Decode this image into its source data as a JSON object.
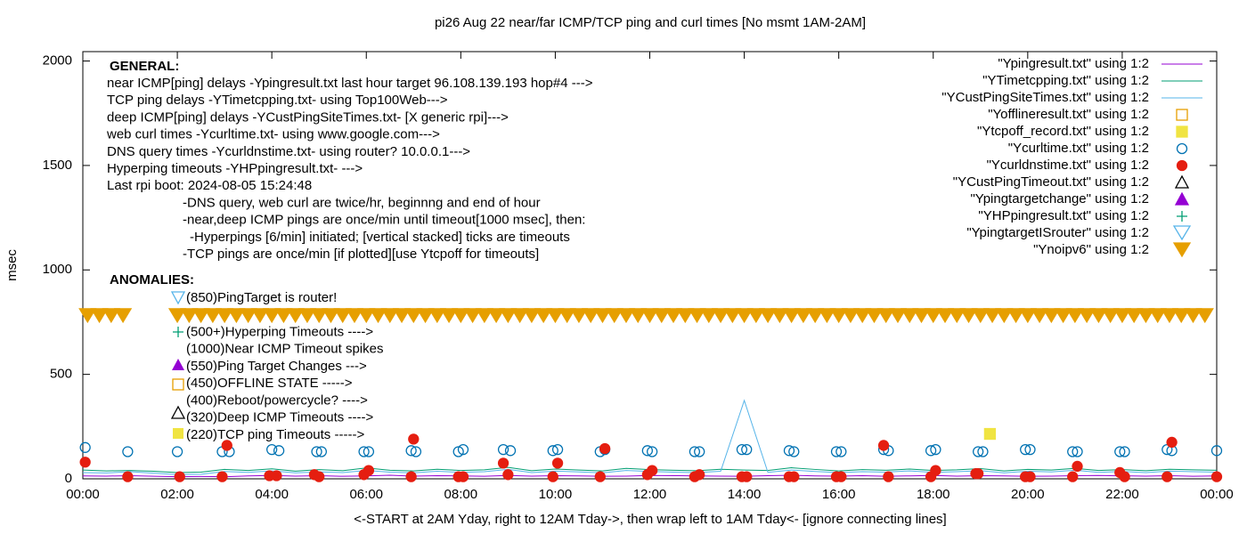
{
  "chart_data": {
    "type": "line",
    "title": "pi26 Aug 22  near/far ICMP/TCP ping and curl times [No msmt 1AM-2AM]",
    "x_label": "<-START at 2AM Yday, right to 12AM Tday->, then wrap left to 1AM Tday<- [ignore connecting lines]",
    "y_label": "msec",
    "xlim": [
      0,
      24
    ],
    "ylim": [
      0,
      2045
    ],
    "xticks": [
      {
        "value": 0,
        "label": "00:00"
      },
      {
        "value": 2,
        "label": "02:00"
      },
      {
        "value": 4,
        "label": "04:00"
      },
      {
        "value": 6,
        "label": "06:00"
      },
      {
        "value": 8,
        "label": "08:00"
      },
      {
        "value": 10,
        "label": "10:00"
      },
      {
        "value": 12,
        "label": "12:00"
      },
      {
        "value": 14,
        "label": "14:00"
      },
      {
        "value": 16,
        "label": "16:00"
      },
      {
        "value": 18,
        "label": "18:00"
      },
      {
        "value": 20,
        "label": "20:00"
      },
      {
        "value": 22,
        "label": "22:00"
      },
      {
        "value": 24,
        "label": "00:00"
      }
    ],
    "yticks": [
      0,
      500,
      1000,
      1500,
      2000
    ],
    "legend": "top-right",
    "general_title": "GENERAL:",
    "general": [
      "near ICMP[ping] delays -Ypingresult.txt last hour target 96.108.139.193 hop#4 --->",
      "TCP ping delays -YTimetcpping.txt- using Top100Web--->",
      "deep ICMP[ping] delays -YCustPingSiteTimes.txt- [X generic rpi]--->",
      "web curl times -Ycurltime.txt- using www.google.com--->",
      "DNS query times -Ycurldnstime.txt- using router? 10.0.0.1--->",
      "Hyperping timeouts -YHPpingresult.txt- --->",
      "Last rpi boot: 2024-08-05 15:24:48",
      "-DNS query, web curl are twice/hr, beginnng and end of hour",
      "-near,deep ICMP pings are once/min until timeout[1000 msec], then:",
      "-Hyperpings [6/min] initiated; [vertical stacked] ticks are timeouts",
      "-TCP pings are once/min [if plotted][use Ytcpoff for timeouts]"
    ],
    "anomalies_title": "ANOMALIES:",
    "anomalies": [
      "(850)PingTarget is router!",
      "(500+)Hyperping Timeouts ---->",
      "(1000)Near ICMP Timeout spikes",
      "(550)Ping Target Changes --->",
      "(450)OFFLINE STATE ----->",
      "(400)Reboot/powercycle? ---->",
      "(320)Deep ICMP Timeouts ---->",
      "(220)TCP ping Timeouts ----->"
    ],
    "x": [
      0,
      0.5,
      1,
      1.5,
      2,
      2.5,
      3,
      3.5,
      4,
      4.5,
      5,
      5.5,
      6,
      6.5,
      7,
      7.5,
      8,
      8.5,
      9,
      9.5,
      10,
      10.5,
      11,
      11.5,
      12,
      12.5,
      13,
      13.5,
      14,
      14.5,
      15,
      15.5,
      16,
      16.5,
      17,
      17.5,
      18,
      18.5,
      19,
      19.5,
      20,
      20.5,
      21,
      21.5,
      22,
      22.5,
      23,
      23.5,
      24
    ],
    "series": [
      {
        "name": "\"Ypingresult.txt\" using 1:2",
        "color": "#9400d3",
        "style": "line",
        "values": [
          14,
          13,
          15,
          12,
          10,
          11,
          10,
          14,
          16,
          13,
          15,
          12,
          14,
          17,
          13,
          15,
          14,
          12,
          16,
          13,
          15,
          14,
          12,
          13,
          16,
          15,
          14,
          13,
          12,
          15,
          17,
          14,
          13,
          15,
          12,
          14,
          16,
          13,
          15,
          14,
          12,
          13,
          15,
          16,
          14,
          13,
          15,
          12,
          14
        ]
      },
      {
        "name": "\"YTimetcpping.txt\" using 1:2",
        "color": "#009e73",
        "style": "line",
        "values": [
          42,
          38,
          40,
          36,
          30,
          32,
          45,
          40,
          48,
          37,
          44,
          39,
          52,
          41,
          38,
          46,
          40,
          43,
          55,
          39,
          47,
          42,
          38,
          50,
          44,
          41,
          39,
          46,
          42,
          40,
          53,
          45,
          38,
          44,
          41,
          47,
          40,
          43,
          49,
          38,
          45,
          42,
          50,
          40,
          44,
          39,
          46,
          43,
          41
        ]
      },
      {
        "name": "\"YCustPingSiteTimes.txt\" using 1:2",
        "color": "#56b4e9",
        "style": "line",
        "values": [
          30,
          28,
          34,
          27,
          20,
          22,
          35,
          31,
          38,
          29,
          33,
          30,
          40,
          32,
          29,
          36,
          31,
          34,
          45,
          30,
          37,
          33,
          29,
          40,
          35,
          32,
          30,
          36,
          375,
          31,
          42,
          35,
          30,
          34,
          32,
          38,
          31,
          34,
          39,
          29,
          36,
          33,
          41,
          31,
          35,
          30,
          37,
          34,
          32
        ]
      },
      {
        "name": "\"Yofflineresult.txt\" using 1:2",
        "color": "#e69f00",
        "style": "square",
        "filled": false,
        "x": [],
        "values": []
      },
      {
        "name": "\"Ytcpoff_record.txt\" using 1:2",
        "color": "#f0e442",
        "style": "square",
        "filled": true,
        "x": [
          19.2
        ],
        "values": [
          215
        ]
      },
      {
        "name": "\"Ycurltime.txt\" using 1:2",
        "color": "#0072b2",
        "style": "circle",
        "filled": false,
        "x": [
          0.05,
          0.95,
          2.0,
          2.95,
          3.1,
          4.0,
          4.15,
          4.95,
          5.05,
          5.95,
          6.05,
          6.95,
          7.05,
          7.95,
          8.05,
          8.9,
          9.05,
          9.95,
          10.05,
          10.95,
          11.05,
          11.95,
          12.05,
          12.95,
          13.05,
          13.95,
          14.05,
          14.95,
          15.05,
          15.95,
          16.05,
          16.95,
          17.05,
          17.95,
          18.05,
          18.95,
          19.05,
          19.95,
          20.05,
          20.95,
          21.05,
          21.95,
          22.05,
          22.95,
          23.05,
          24.0
        ],
        "values": [
          150,
          130,
          130,
          130,
          130,
          140,
          135,
          130,
          130,
          130,
          130,
          135,
          130,
          130,
          140,
          140,
          135,
          135,
          140,
          130,
          140,
          135,
          130,
          130,
          130,
          140,
          140,
          135,
          130,
          130,
          130,
          140,
          135,
          135,
          140,
          130,
          130,
          140,
          140,
          130,
          130,
          130,
          130,
          140,
          135,
          135
        ]
      },
      {
        "name": "\"Ycurldnstime.txt\" using 1:2",
        "color": "#e51e10",
        "style": "circle",
        "filled": true,
        "x": [
          0.05,
          0.95,
          2.05,
          2.95,
          3.05,
          3.95,
          4.1,
          4.9,
          5.0,
          5.95,
          6.05,
          6.95,
          7.0,
          7.95,
          8.05,
          8.9,
          9.0,
          9.95,
          10.05,
          10.95,
          11.05,
          11.95,
          12.05,
          12.95,
          13.05,
          13.95,
          14.05,
          14.95,
          15.05,
          15.95,
          16.05,
          16.95,
          17.05,
          17.95,
          18.05,
          18.9,
          18.95,
          19.95,
          20.05,
          20.95,
          21.05,
          21.95,
          22.05,
          22.95,
          23.05,
          24.0
        ],
        "values": [
          80,
          10,
          10,
          10,
          160,
          15,
          15,
          20,
          10,
          20,
          40,
          10,
          190,
          10,
          10,
          75,
          20,
          10,
          75,
          10,
          145,
          20,
          40,
          10,
          20,
          10,
          10,
          10,
          10,
          10,
          10,
          160,
          10,
          10,
          40,
          25,
          25,
          10,
          10,
          10,
          60,
          30,
          10,
          10,
          175,
          10
        ]
      },
      {
        "name": "\"YCustPingTimeout.txt\" using 1:2",
        "color": "#000000",
        "style": "tri-up",
        "filled": false,
        "x": [],
        "values": []
      },
      {
        "name": "\"Ypingtargetchange\" using 1:2",
        "color": "#9400d3",
        "style": "tri-up",
        "filled": true,
        "x": [],
        "values": []
      },
      {
        "name": "\"YHPpingresult.txt\" using 1:2",
        "color": "#009e73",
        "style": "plus",
        "filled": false,
        "x": [],
        "values": []
      },
      {
        "name": "\"YpingtargetISrouter\" using 1:2",
        "color": "#56b4e9",
        "style": "tri-down",
        "filled": false,
        "x": [],
        "values": []
      },
      {
        "name": "\"Ynoipv6\" using 1:2",
        "color": "#e69f00",
        "style": "tri-down",
        "filled": true,
        "x": [
          0.1,
          0.35,
          0.6,
          0.85,
          2.0,
          2.25,
          2.5,
          2.75,
          3.0,
          3.25,
          3.5,
          3.75,
          4.0,
          4.25,
          4.5,
          4.75,
          5.0,
          5.25,
          5.5,
          5.75,
          6.0,
          6.25,
          6.5,
          6.75,
          7.0,
          7.25,
          7.5,
          7.75,
          8.0,
          8.25,
          8.5,
          8.75,
          9.0,
          9.25,
          9.5,
          9.75,
          10.0,
          10.25,
          10.5,
          10.75,
          11.0,
          11.25,
          11.5,
          11.75,
          12.0,
          12.25,
          12.5,
          12.75,
          13.0,
          13.25,
          13.5,
          13.75,
          14.0,
          14.25,
          14.5,
          14.75,
          15.0,
          15.25,
          15.5,
          15.75,
          16.0,
          16.25,
          16.5,
          16.75,
          17.0,
          17.25,
          17.5,
          17.75,
          18.0,
          18.25,
          18.5,
          18.75,
          19.0,
          19.25,
          19.5,
          19.75,
          20.0,
          20.25,
          20.5,
          20.75,
          21.0,
          21.25,
          21.5,
          21.75,
          22.0,
          22.25,
          22.5,
          22.75,
          23.0,
          23.25,
          23.5,
          23.75
        ],
        "values": [
          780,
          780,
          780,
          780,
          780,
          780,
          780,
          780,
          780,
          780,
          780,
          780,
          780,
          780,
          780,
          780,
          780,
          780,
          780,
          780,
          780,
          780,
          780,
          780,
          780,
          780,
          780,
          780,
          780,
          780,
          780,
          780,
          780,
          780,
          780,
          780,
          780,
          780,
          780,
          780,
          780,
          780,
          780,
          780,
          780,
          780,
          780,
          780,
          780,
          780,
          780,
          780,
          780,
          780,
          780,
          780,
          780,
          780,
          780,
          780,
          780,
          780,
          780,
          780,
          780,
          780,
          780,
          780,
          780,
          780,
          780,
          780,
          780,
          780,
          780,
          780,
          780,
          780,
          780,
          780,
          780,
          780,
          780,
          780,
          780,
          780,
          780,
          780,
          780,
          780,
          780,
          780
        ]
      }
    ]
  }
}
